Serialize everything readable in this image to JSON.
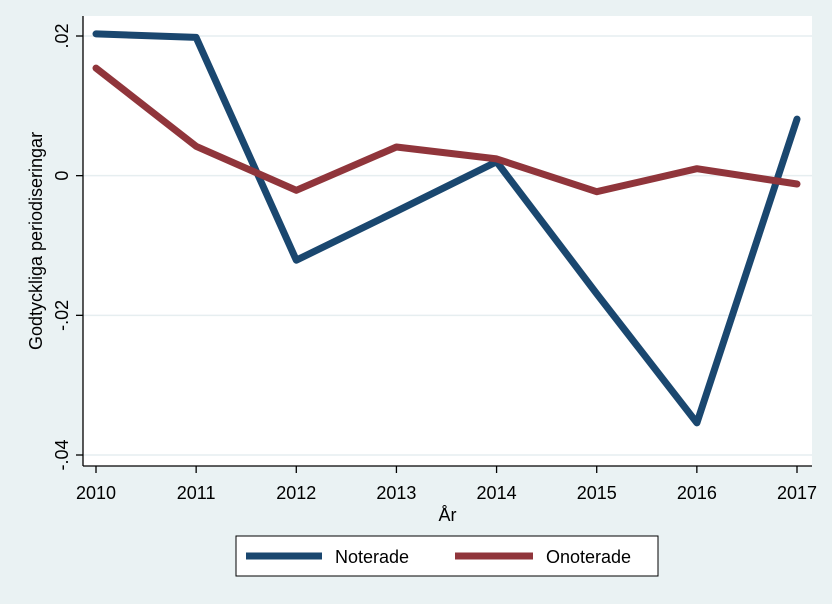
{
  "chart_data": {
    "type": "line",
    "title": "",
    "xlabel": "År",
    "ylabel": "Godtyckliga periodiseringar",
    "x": [
      2010,
      2011,
      2012,
      2013,
      2014,
      2015,
      2016,
      2017
    ],
    "xlim": [
      2010,
      2017
    ],
    "ylim": [
      -0.04,
      0.02
    ],
    "x_ticks": [
      "2010",
      "2011",
      "2012",
      "2013",
      "2014",
      "2015",
      "2016",
      "2017"
    ],
    "y_ticks": [
      {
        "value": 0.02,
        "label": ".02"
      },
      {
        "value": 0,
        "label": "0"
      },
      {
        "value": -0.02,
        "label": "-.02"
      },
      {
        "value": -0.04,
        "label": "-.04"
      }
    ],
    "grid": true,
    "legend_position": "bottom",
    "series": [
      {
        "name": "Noterade",
        "color": "#1a476f",
        "values": [
          0.0203,
          0.0198,
          -0.0121,
          -0.0051,
          0.002,
          -0.0169,
          -0.0354,
          0.0081
        ]
      },
      {
        "name": "Onoterade",
        "color": "#90353b",
        "values": [
          0.0154,
          0.0042,
          -0.0021,
          0.0041,
          0.0024,
          -0.0023,
          0.001,
          -0.0012
        ]
      }
    ]
  }
}
